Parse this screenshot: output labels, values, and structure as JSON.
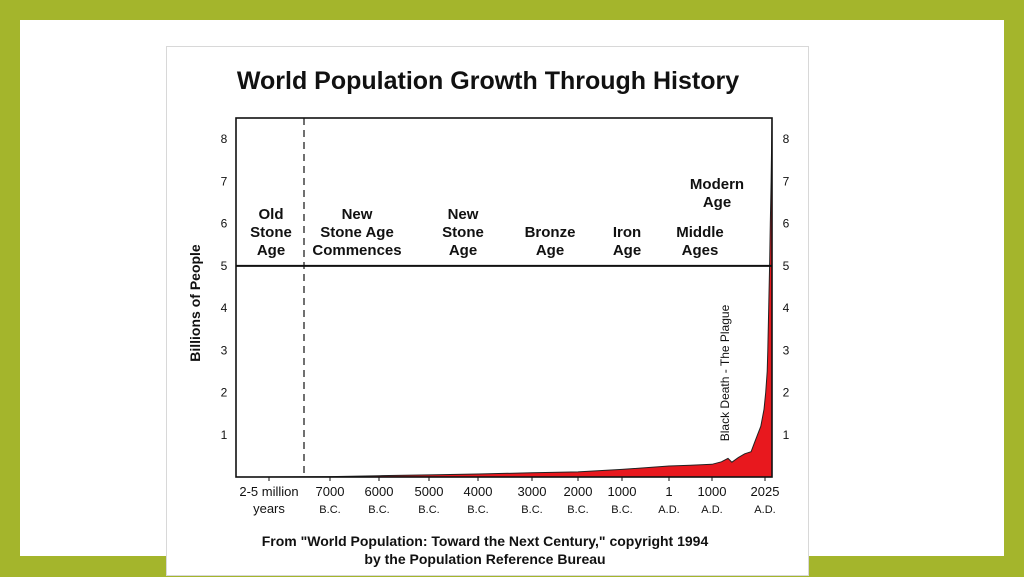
{
  "chart_data": {
    "type": "area",
    "title": "World Population Growth Through History",
    "ylabel": "Billions of People",
    "xlabel": "",
    "ylim": [
      0,
      8.5
    ],
    "yticks": [
      "1",
      "2",
      "3",
      "4",
      "5",
      "6",
      "7",
      "8"
    ],
    "x_ticks": [
      {
        "line1": "2-5 million",
        "line2": "years"
      },
      {
        "line1": "7000",
        "line2": "B.C."
      },
      {
        "line1": "6000",
        "line2": "B.C."
      },
      {
        "line1": "5000",
        "line2": "B.C."
      },
      {
        "line1": "4000",
        "line2": "B.C."
      },
      {
        "line1": "3000",
        "line2": "B.C."
      },
      {
        "line1": "2000",
        "line2": "B.C."
      },
      {
        "line1": "1000",
        "line2": "B.C."
      },
      {
        "line1": "1",
        "line2": "A.D."
      },
      {
        "line1": "1000",
        "line2": "A.D."
      },
      {
        "line1": "2025",
        "line2": "A.D."
      }
    ],
    "eras": [
      [
        "Old",
        "Stone",
        "Age"
      ],
      [
        "New",
        "Stone Age",
        "Commences"
      ],
      [
        "New",
        "Stone",
        "Age"
      ],
      [
        "Bronze",
        "Age"
      ],
      [
        "Iron",
        "Age"
      ],
      [
        "Middle",
        "Ages"
      ],
      [
        "Modern",
        "Age"
      ]
    ],
    "annotation": "Black Death - The Plague",
    "color": "#e8181e",
    "series": [
      {
        "x": [
          -9000,
          -8000,
          -7000,
          -6000,
          -5000,
          -4000,
          -3000,
          -2000,
          -1000,
          1,
          500,
          1000,
          1200,
          1340,
          1400,
          1500,
          1600,
          1700,
          1750,
          1800,
          1850,
          1900,
          1927,
          1950,
          1960,
          1974,
          1987,
          1999,
          2011,
          2025
        ],
        "values": [
          0.0,
          0.005,
          0.01,
          0.03,
          0.05,
          0.07,
          0.1,
          0.12,
          0.18,
          0.26,
          0.28,
          0.3,
          0.36,
          0.44,
          0.35,
          0.46,
          0.55,
          0.6,
          0.8,
          1.0,
          1.2,
          1.6,
          2.0,
          2.5,
          3.0,
          4.0,
          5.0,
          6.0,
          7.0,
          8.5
        ]
      }
    ]
  },
  "source": {
    "line1": "From \"World Population: Toward the Next Century,\" copyright 1994",
    "line2": "by the Population Reference Bureau"
  }
}
